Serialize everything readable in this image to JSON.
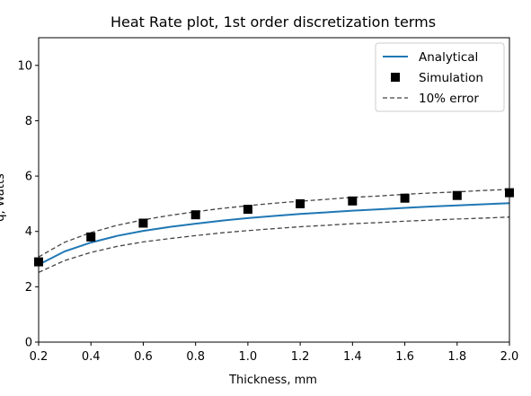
{
  "chart_data": {
    "type": "line",
    "title": "Heat Rate plot, 1st order discretization terms",
    "xlabel": "Thickness, mm",
    "ylabel": "q, Watts",
    "xlim": [
      0.2,
      2.0
    ],
    "ylim": [
      0,
      11
    ],
    "xticks": [
      0.2,
      0.4,
      0.6,
      0.8,
      1.0,
      1.2,
      1.4,
      1.6,
      1.8,
      2.0
    ],
    "xtick_labels": [
      "0.2",
      "0.4",
      "0.6",
      "0.8",
      "1.0",
      "1.2",
      "1.4",
      "1.6",
      "1.8",
      "2.0"
    ],
    "yticks": [
      0,
      2,
      4,
      6,
      8,
      10
    ],
    "ytick_labels": [
      "0",
      "2",
      "4",
      "6",
      "8",
      "10"
    ],
    "legend_position": "top-right",
    "series": [
      {
        "name": "Analytical",
        "kind": "line",
        "color": "#1f77b4",
        "x": [
          0.2,
          0.3,
          0.4,
          0.5,
          0.6,
          0.7,
          0.8,
          0.9,
          1.0,
          1.1,
          1.2,
          1.3,
          1.4,
          1.5,
          1.6,
          1.7,
          1.8,
          1.9,
          2.0
        ],
        "values": [
          2.8,
          3.28,
          3.6,
          3.84,
          4.02,
          4.16,
          4.28,
          4.39,
          4.48,
          4.56,
          4.63,
          4.69,
          4.75,
          4.8,
          4.85,
          4.9,
          4.94,
          4.98,
          5.02
        ]
      },
      {
        "name": "Simulation",
        "kind": "marker",
        "color": "#000000",
        "x": [
          0.2,
          0.4,
          0.6,
          0.8,
          1.0,
          1.2,
          1.4,
          1.6,
          1.8,
          2.0
        ],
        "values": [
          2.9,
          3.8,
          4.3,
          4.6,
          4.8,
          5.0,
          5.1,
          5.2,
          5.3,
          5.4
        ]
      },
      {
        "name": "10% error",
        "kind": "dashed",
        "color": "#000000",
        "x": [
          0.2,
          0.3,
          0.4,
          0.5,
          0.6,
          0.7,
          0.8,
          0.9,
          1.0,
          1.1,
          1.2,
          1.3,
          1.4,
          1.5,
          1.6,
          1.7,
          1.8,
          1.9,
          2.0
        ],
        "upper": [
          3.08,
          3.61,
          3.96,
          4.22,
          4.42,
          4.58,
          4.71,
          4.83,
          4.93,
          5.02,
          5.09,
          5.16,
          5.23,
          5.28,
          5.34,
          5.39,
          5.43,
          5.48,
          5.52
        ],
        "lower": [
          2.52,
          2.95,
          3.24,
          3.46,
          3.62,
          3.74,
          3.85,
          3.95,
          4.03,
          4.1,
          4.17,
          4.22,
          4.28,
          4.32,
          4.37,
          4.41,
          4.45,
          4.48,
          4.52
        ]
      }
    ]
  }
}
